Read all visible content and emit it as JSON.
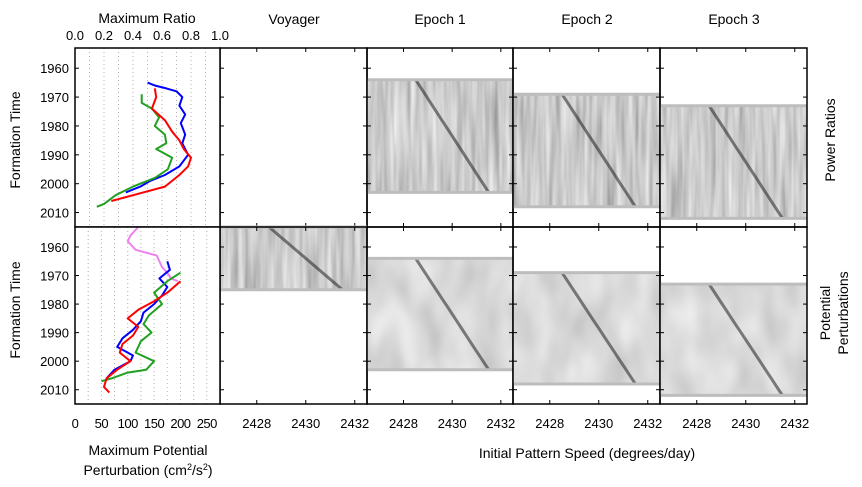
{
  "column_titles": [
    {
      "text": "Voyager",
      "color": "#ee82ee"
    },
    {
      "text": "Epoch 1",
      "color": "#0000ff"
    },
    {
      "text": "Epoch 2",
      "color": "#22a022"
    },
    {
      "text": "Epoch 3",
      "color": "#ff0000"
    }
  ],
  "row_titles": {
    "top": [
      "Power Ratios"
    ],
    "bottom": [
      "Potential",
      "Perturbations"
    ]
  },
  "y_axis_label": "Formation Time",
  "y_ticks": [
    "1960",
    "1970",
    "1980",
    "1990",
    "2000",
    "2010"
  ],
  "top_axis": {
    "title": "Maximum Ratio",
    "ticks": [
      "0.0",
      "0.2",
      "0.4",
      "0.6",
      "0.8",
      "1.0"
    ]
  },
  "bottom_left_axis": {
    "title_line1": "Maximum Potential",
    "title_line2_prefix": "Perturbation (cm",
    "title_line2_sup1": "2",
    "title_line2_mid": "/s",
    "title_line2_sup2": "2",
    "title_line2_suffix": ")",
    "ticks": [
      "0",
      "50",
      "100",
      "150",
      "200",
      "250"
    ]
  },
  "bottom_axis": {
    "title": "Initial Pattern Speed (degrees/day)",
    "ticks": [
      "2428",
      "2430",
      "2432"
    ]
  },
  "chart_data": [
    {
      "type": "line",
      "panel": "max-ratio",
      "xlabel": "Maximum Ratio",
      "ylabel": "Formation Time",
      "xlim": [
        0.0,
        1.0
      ],
      "ylim": [
        2015,
        1953
      ],
      "grid": true,
      "series": [
        {
          "color": "#0000ff",
          "points": [
            [
              0.5,
              1965
            ],
            [
              0.55,
              1966
            ],
            [
              0.63,
              1967
            ],
            [
              0.7,
              1968
            ],
            [
              0.74,
              1970
            ],
            [
              0.72,
              1973
            ],
            [
              0.76,
              1976
            ],
            [
              0.73,
              1979
            ],
            [
              0.76,
              1983
            ],
            [
              0.74,
              1986
            ],
            [
              0.78,
              1990
            ],
            [
              0.72,
              1994
            ],
            [
              0.62,
              1997
            ],
            [
              0.52,
              1999
            ],
            [
              0.45,
              2001
            ],
            [
              0.35,
              2003
            ]
          ]
        },
        {
          "color": "#22a022",
          "points": [
            [
              0.46,
              1969
            ],
            [
              0.46,
              1972
            ],
            [
              0.53,
              1974
            ],
            [
              0.58,
              1977
            ],
            [
              0.55,
              1980
            ],
            [
              0.62,
              1983
            ],
            [
              0.63,
              1986
            ],
            [
              0.56,
              1988
            ],
            [
              0.67,
              1991
            ],
            [
              0.64,
              1995
            ],
            [
              0.55,
              1998
            ],
            [
              0.4,
              2001
            ],
            [
              0.28,
              2004
            ],
            [
              0.2,
              2007
            ],
            [
              0.15,
              2008
            ]
          ]
        },
        {
          "color": "#ff0000",
          "points": [
            [
              0.55,
              1967
            ],
            [
              0.56,
              1970
            ],
            [
              0.53,
              1974
            ],
            [
              0.62,
              1978
            ],
            [
              0.67,
              1982
            ],
            [
              0.72,
              1985
            ],
            [
              0.75,
              1988
            ],
            [
              0.8,
              1991
            ],
            [
              0.78,
              1994
            ],
            [
              0.72,
              1997
            ],
            [
              0.62,
              2001
            ],
            [
              0.4,
              2004
            ],
            [
              0.25,
              2006
            ]
          ]
        }
      ]
    },
    {
      "type": "line",
      "panel": "max-potential-perturbation",
      "xlabel": "Maximum Potential Perturbation (cm^2/s^2)",
      "ylabel": "Formation Time",
      "xlim": [
        0,
        275
      ],
      "ylim": [
        2015,
        1953
      ],
      "grid": true,
      "series": [
        {
          "color": "#ee82ee",
          "points": [
            [
              120,
              1953
            ],
            [
              105,
              1956
            ],
            [
              100,
              1958
            ],
            [
              115,
              1961
            ],
            [
              155,
              1963
            ],
            [
              160,
              1965
            ],
            [
              165,
              1967
            ],
            [
              175,
              1969
            ],
            [
              182,
              1971
            ],
            [
              195,
              1972
            ]
          ]
        },
        {
          "color": "#0000ff",
          "points": [
            [
              175,
              1965
            ],
            [
              180,
              1968
            ],
            [
              160,
              1971
            ],
            [
              175,
              1974
            ],
            [
              165,
              1977
            ],
            [
              150,
              1980
            ],
            [
              130,
              1983
            ],
            [
              125,
              1986
            ],
            [
              110,
              1989
            ],
            [
              90,
              1992
            ],
            [
              80,
              1995
            ],
            [
              110,
              1998
            ],
            [
              105,
              2000
            ],
            [
              75,
              2003
            ],
            [
              60,
              2006
            ]
          ]
        },
        {
          "color": "#22a022",
          "points": [
            [
              200,
              1969
            ],
            [
              175,
              1972
            ],
            [
              150,
              1976
            ],
            [
              165,
              1980
            ],
            [
              140,
              1984
            ],
            [
              130,
              1987
            ],
            [
              145,
              1990
            ],
            [
              125,
              1993
            ],
            [
              115,
              1997
            ],
            [
              150,
              2000
            ],
            [
              135,
              2003
            ],
            [
              100,
              2004
            ],
            [
              70,
              2006
            ],
            [
              50,
              2007
            ]
          ]
        },
        {
          "color": "#ff0000",
          "points": [
            [
              200,
              1972
            ],
            [
              175,
              1976
            ],
            [
              150,
              1979
            ],
            [
              120,
              1982
            ],
            [
              100,
              1985
            ],
            [
              120,
              1988
            ],
            [
              110,
              1991
            ],
            [
              90,
              1994
            ],
            [
              85,
              1997
            ],
            [
              105,
              2000
            ],
            [
              80,
              2003
            ],
            [
              60,
              2006
            ],
            [
              55,
              2009
            ],
            [
              65,
              2011
            ]
          ]
        }
      ]
    },
    {
      "type": "heatmap",
      "panel": "spectrograms",
      "xlabel": "Initial Pattern Speed (degrees/day)",
      "ylabel": "Formation Time",
      "xlim": [
        2426.5,
        2432.5
      ],
      "ylim": [
        2015,
        1953
      ],
      "rows": [
        "Power Ratios",
        "Potential Perturbations"
      ],
      "columns": [
        "Voyager",
        "Epoch 1",
        "Epoch 2",
        "Epoch 3"
      ],
      "coverage_years": [
        {
          "column": "Voyager",
          "top": null,
          "bottom": [
            1953,
            1975
          ]
        },
        {
          "column": "Epoch 1",
          "top": [
            1964,
            2003
          ],
          "bottom": [
            1964,
            2003
          ]
        },
        {
          "column": "Epoch 2",
          "top": [
            1969,
            2008
          ],
          "bottom": [
            1969,
            2008
          ]
        },
        {
          "column": "Epoch 3",
          "top": [
            1973,
            2012
          ],
          "bottom": [
            1973,
            2012
          ]
        }
      ]
    }
  ]
}
